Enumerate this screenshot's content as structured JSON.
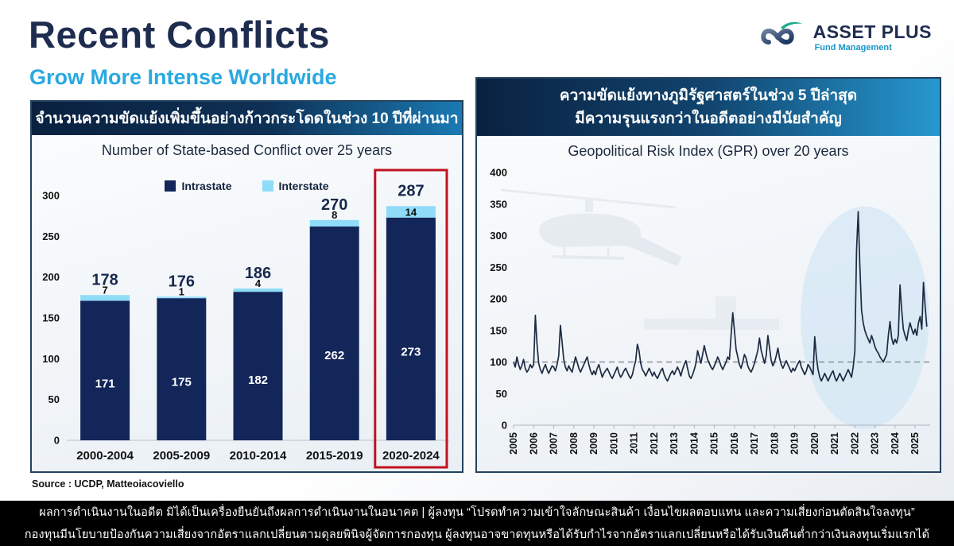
{
  "page": {
    "title": "Recent Conflicts",
    "subtitle": "Grow More Intense Worldwide"
  },
  "logo": {
    "name": "ASSET PLUS",
    "tagline": "Fund Management"
  },
  "left_panel": {
    "header_th": "จำนวนความขัดแย้งเพิ่มขึ้นอย่างก้าวกระโดดในช่วง 10 ปีที่ผ่านมา",
    "chart_title": "Number of State-based Conflict over 25 years",
    "source": "Source : UCDP, Matteoiacoviello"
  },
  "right_panel": {
    "header_th_line1": "ความขัดแย้งทางภูมิรัฐศาสตร์ในช่วง 5 ปีล่าสุด",
    "header_th_line2": "มีความรุนแรงกว่าในอดีตอย่างมีนัยสำคัญ",
    "chart_title": "Geopolitical Risk Index (GPR) over 20 years"
  },
  "footer": {
    "line1": "ผลการดำเนินงานในอดีต มิได้เป็นเครื่องยืนยันถึงผลการดำเนินงานในอนาคต  | ผู้ลงทุน “โปรดทำความเข้าใจลักษณะสินค้า เงื่อนไขผลตอบแทน และความเสี่ยงก่อนตัดสินใจลงทุน”",
    "line2": "กองทุนมีนโยบายป้องกันความเสี่ยงจากอัตราแลกเปลี่ยนตามดุลยพินิจผู้จัดการกองทุน ผู้ลงทุนอาจขาดทุนหรือได้รับกำไรจากอัตราแลกเปลี่ยนหรือได้รับเงินคืนต่ำกว่าเงินลงทุนเริ่มแรกได้"
  },
  "colors": {
    "title_navy": "#1e2c4f",
    "subtitle_blue": "#29a9e1",
    "intrastate": "#13265a",
    "interstate": "#8edcf8",
    "highlight_red": "#c1121f",
    "line": "#1d2b42",
    "reference_dash": "#8a9099",
    "ellipse_highlight": "#cfe5f4"
  },
  "chart_data": [
    {
      "type": "bar",
      "title": "Number of State-based Conflict over 25 years",
      "categories": [
        "2000-2004",
        "2005-2009",
        "2010-2014",
        "2015-2019",
        "2020-2024"
      ],
      "series": [
        {
          "name": "Intrastate",
          "color": "#13265a",
          "values": [
            171,
            175,
            182,
            262,
            273
          ]
        },
        {
          "name": "Interstate",
          "color": "#8edcf8",
          "values": [
            7,
            1,
            4,
            8,
            14
          ]
        }
      ],
      "totals": [
        178,
        176,
        186,
        270,
        287
      ],
      "ylim": [
        0,
        300
      ],
      "yticks": [
        0,
        50,
        100,
        150,
        200,
        250,
        300
      ],
      "legend_position": "top",
      "grid": false,
      "highlight_category": "2020-2024"
    },
    {
      "type": "line",
      "title": "Geopolitical Risk Index (GPR) over 20 years",
      "x_start_year": 2005,
      "x_step_months": 1,
      "xticks": [
        2005,
        2006,
        2007,
        2008,
        2009,
        2010,
        2011,
        2012,
        2013,
        2014,
        2015,
        2016,
        2017,
        2018,
        2019,
        2020,
        2021,
        2022,
        2023,
        2024,
        2025
      ],
      "ylim": [
        0,
        400
      ],
      "yticks": [
        0,
        50,
        100,
        150,
        200,
        250,
        300,
        350,
        400
      ],
      "reference_line": 100,
      "grid": false,
      "highlight_ellipse": {
        "center_year": 2022.5,
        "rx_years": 3.2,
        "value_center": 170,
        "value_ry": 176,
        "note": "last 5 years"
      },
      "values": [
        100,
        92,
        108,
        96,
        88,
        95,
        104,
        90,
        84,
        88,
        96,
        91,
        96,
        174,
        128,
        98,
        88,
        82,
        90,
        96,
        88,
        82,
        88,
        94,
        92,
        86,
        96,
        110,
        158,
        132,
        104,
        92,
        86,
        94,
        88,
        84,
        96,
        108,
        100,
        90,
        84,
        90,
        96,
        102,
        108,
        96,
        86,
        80,
        86,
        80,
        90,
        96,
        86,
        76,
        82,
        86,
        90,
        84,
        78,
        74,
        80,
        86,
        92,
        82,
        76,
        80,
        86,
        90,
        84,
        78,
        74,
        80,
        92,
        102,
        128,
        118,
        98,
        88,
        84,
        78,
        84,
        90,
        84,
        78,
        84,
        78,
        74,
        80,
        86,
        90,
        80,
        74,
        70,
        76,
        82,
        86,
        80,
        86,
        92,
        86,
        78,
        88,
        96,
        102,
        90,
        78,
        74,
        80,
        88,
        98,
        118,
        108,
        98,
        112,
        126,
        114,
        104,
        98,
        92,
        88,
        94,
        100,
        108,
        102,
        94,
        88,
        94,
        100,
        108,
        104,
        142,
        178,
        150,
        120,
        108,
        96,
        90,
        100,
        112,
        106,
        94,
        88,
        84,
        90,
        98,
        108,
        118,
        138,
        118,
        108,
        98,
        110,
        142,
        122,
        102,
        94,
        100,
        110,
        122,
        106,
        96,
        90,
        96,
        102,
        96,
        90,
        84,
        90,
        86,
        92,
        98,
        102,
        92,
        86,
        80,
        86,
        96,
        92,
        86,
        80,
        140,
        108,
        88,
        76,
        70,
        76,
        82,
        76,
        70,
        76,
        82,
        86,
        76,
        70,
        76,
        82,
        76,
        70,
        76,
        82,
        88,
        82,
        76,
        92,
        118,
        276,
        338,
        252,
        182,
        162,
        150,
        142,
        136,
        130,
        142,
        134,
        124,
        118,
        114,
        108,
        104,
        100,
        106,
        112,
        142,
        164,
        138,
        128,
        136,
        130,
        142,
        222,
        182,
        152,
        142,
        134,
        150,
        162,
        152,
        144,
        152,
        142,
        162,
        172,
        152,
        226,
        188,
        156
      ]
    }
  ]
}
